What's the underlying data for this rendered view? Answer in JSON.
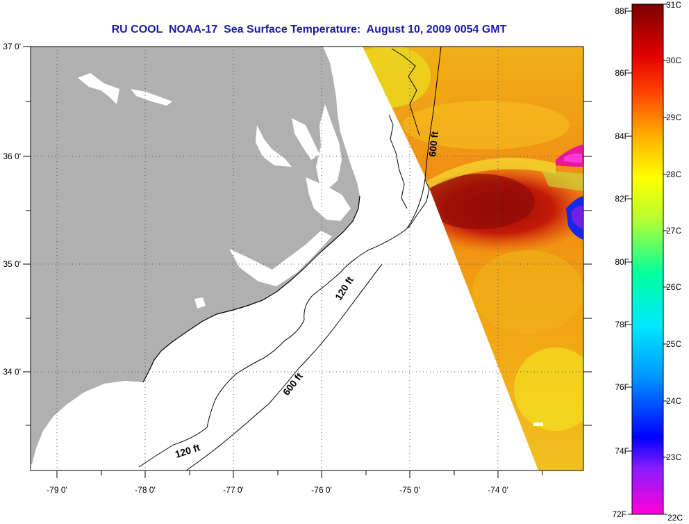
{
  "title": "RU COOL  NOAA-17  Sea Surface Temperature:  August 10, 2009 0054 GMT",
  "map": {
    "lon_range": [
      -79.3,
      -73.1
    ],
    "lat_range": [
      33.1,
      37.0
    ],
    "lon_ticks": [
      "-79 0'",
      "-78 0'",
      "-77 0'",
      "-76 0'",
      "-75 0'",
      "-74 0'"
    ],
    "lat_ticks": [
      "37 0'",
      "36 0'",
      "35 0'",
      "34 0'"
    ],
    "land_color": "#b0b0b0",
    "grid": "dotted"
  },
  "contours": {
    "label_600_north": "600 ft",
    "label_120_mid": "120 ft",
    "label_600_south": "600 ft",
    "label_120_south": "120 ft"
  },
  "colorbar": {
    "f_labels": [
      "88F",
      "86F",
      "84F",
      "82F",
      "80F",
      "78F",
      "76F",
      "74F",
      "72F"
    ],
    "c_labels": [
      "31C",
      "30C",
      "29C",
      "28C",
      "27C",
      "26C",
      "25C",
      "24C",
      "23C",
      "22C"
    ],
    "range_c": [
      22,
      31
    ]
  }
}
